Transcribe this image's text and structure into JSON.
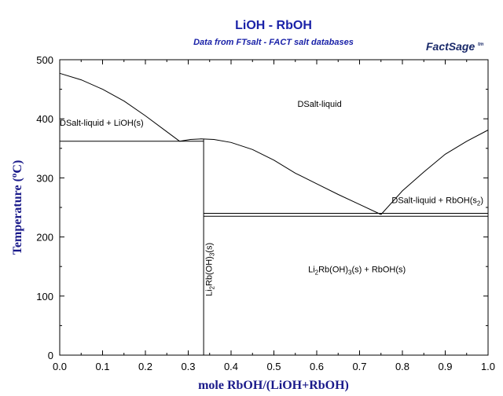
{
  "chart_data": {
    "type": "line",
    "title": "LiOH - RbOH",
    "subtitle": "Data from FTsalt - FACT salt databases",
    "xlabel": "mole RbOH/(LiOH+RbOH)",
    "ylabel": "Temperature (°C)",
    "xlim": [
      0,
      1
    ],
    "ylim": [
      0,
      500
    ],
    "xticks": [
      0.0,
      0.1,
      0.2,
      0.3,
      0.4,
      0.5,
      0.6,
      0.7,
      0.8,
      0.9,
      1.0
    ],
    "xtick_labels": [
      "0.0",
      "0.1",
      "0.2",
      "0.3",
      "0.4",
      "0.5",
      "0.6",
      "0.7",
      "0.8",
      "0.9",
      "1.0"
    ],
    "yticks": [
      0,
      100,
      200,
      300,
      400,
      500
    ],
    "ytick_labels": [
      "0",
      "100",
      "200",
      "300",
      "400",
      "500"
    ],
    "series": [
      {
        "points": [
          [
            0.0,
            477
          ],
          [
            0.05,
            466
          ],
          [
            0.1,
            450
          ],
          [
            0.15,
            430
          ],
          [
            0.2,
            405
          ],
          [
            0.25,
            378
          ],
          [
            0.28,
            362
          ]
        ]
      },
      {
        "points": [
          [
            0.28,
            362
          ],
          [
            0.305,
            365
          ],
          [
            0.33,
            366
          ],
          [
            0.36,
            365
          ],
          [
            0.4,
            360
          ],
          [
            0.45,
            348
          ],
          [
            0.5,
            330
          ],
          [
            0.55,
            308
          ],
          [
            0.6,
            290
          ],
          [
            0.65,
            272
          ],
          [
            0.7,
            255
          ],
          [
            0.75,
            238
          ]
        ]
      },
      {
        "points": [
          [
            0.75,
            238
          ],
          [
            0.8,
            278
          ],
          [
            0.85,
            310
          ],
          [
            0.9,
            340
          ],
          [
            0.95,
            362
          ],
          [
            1.0,
            381
          ]
        ]
      },
      {
        "points": [
          [
            0.0,
            362
          ],
          [
            0.336,
            362
          ]
        ]
      },
      {
        "points": [
          [
            0.336,
            0
          ],
          [
            0.336,
            366
          ]
        ]
      },
      {
        "points": [
          [
            0.336,
            240
          ],
          [
            1.0,
            240
          ]
        ]
      },
      {
        "points": [
          [
            0.336,
            235
          ],
          [
            1.0,
            235
          ]
        ]
      }
    ],
    "annotations": [
      {
        "text": "DSalt-liquid",
        "x": 0.555,
        "y": 420
      },
      {
        "text": "DSalt-liquid + LiOH(s)",
        "x": 0.0,
        "y": 388
      },
      {
        "text": "DSalt-liquid + RbOH(s2)",
        "x": 0.775,
        "y": 257
      },
      {
        "text": "Li2Rb(OH)3(s) + RbOH(s)",
        "x": 0.58,
        "y": 140
      },
      {
        "text": "Li2Rb(OH)3(s)",
        "x": 0.355,
        "y": 145,
        "rotation": -90
      }
    ],
    "grid": false
  },
  "logo": {
    "text": "FactSage",
    "mark": "tm"
  }
}
